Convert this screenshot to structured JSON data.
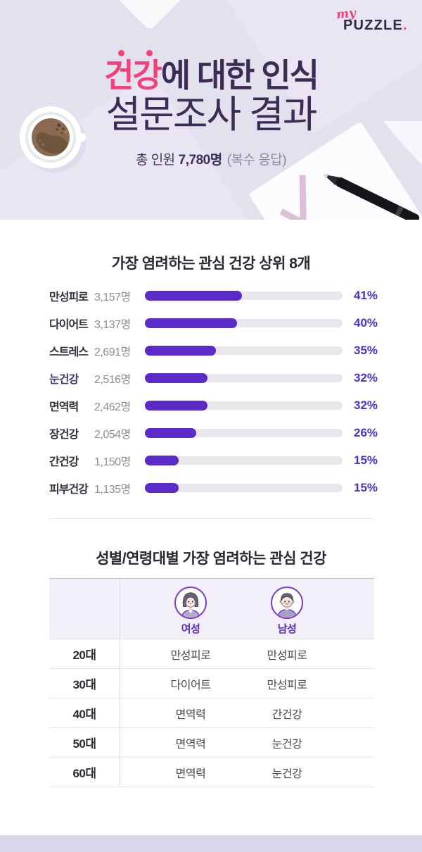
{
  "logo": {
    "prefix": "my",
    "name": "PUZZLE",
    "dot": "."
  },
  "header": {
    "title_highlight": "건강",
    "title_rest": "에 대한 인식",
    "title_line2": "설문조사 결과",
    "total_label": "총 인원",
    "total_value": "7,780명",
    "total_note": "(복수 응답)"
  },
  "chart_data": {
    "type": "bar",
    "orientation": "horizontal",
    "title": "가장 염려하는 관심 건강 상위 8개",
    "unit": "명",
    "xlim": [
      0,
      100
    ],
    "grid": false,
    "legend": false,
    "bar_color": "#5B2BC9",
    "track_color": "#E9E7EC",
    "pct_color": "#4733CB",
    "items": [
      {
        "category": "만성피로",
        "count": "3,157명",
        "pct": 41,
        "pct_label": "41%",
        "fill_ratio": 49,
        "label_color": "#35313D"
      },
      {
        "category": "다이어트",
        "count": "3,137명",
        "pct": 40,
        "pct_label": "40%",
        "fill_ratio": 46.5,
        "label_color": "#35313D"
      },
      {
        "category": "스트레스",
        "count": "2,691명",
        "pct": 35,
        "pct_label": "35%",
        "fill_ratio": 36,
        "label_color": "#35313D"
      },
      {
        "category": "눈건강",
        "count": "2,516명",
        "pct": 32,
        "pct_label": "32%",
        "fill_ratio": 31.5,
        "label_color": "#483A6E"
      },
      {
        "category": "면역력",
        "count": "2,462명",
        "pct": 32,
        "pct_label": "32%",
        "fill_ratio": 31.5,
        "label_color": "#35313D"
      },
      {
        "category": "장건강",
        "count": "2,054명",
        "pct": 26,
        "pct_label": "26%",
        "fill_ratio": 26,
        "label_color": "#35313D"
      },
      {
        "category": "간건강",
        "count": "1,150명",
        "pct": 15,
        "pct_label": "15%",
        "fill_ratio": 17,
        "label_color": "#35313D"
      },
      {
        "category": "피부건강",
        "count": "1,135명",
        "pct": 15,
        "pct_label": "15%",
        "fill_ratio": 17,
        "label_color": "#35313D"
      }
    ]
  },
  "table": {
    "title": "성별/연령대별 가장 염려하는 관심 건강",
    "col_female": "여성",
    "col_male": "남성",
    "rows": [
      {
        "age": "20대",
        "female": "만성피로",
        "male": "만성피로"
      },
      {
        "age": "30대",
        "female": "다이어트",
        "male": "만성피로"
      },
      {
        "age": "40대",
        "female": "면역력",
        "male": "간건강"
      },
      {
        "age": "50대",
        "female": "면역력",
        "male": "눈건강"
      },
      {
        "age": "60대",
        "female": "면역력",
        "male": "눈건강"
      }
    ]
  },
  "colors": {
    "accent_pink": "#F43F7B",
    "dark_purple": "#3B2C55",
    "header_bg": "#E4E1EF",
    "footer_bg": "#DBD6E9"
  }
}
